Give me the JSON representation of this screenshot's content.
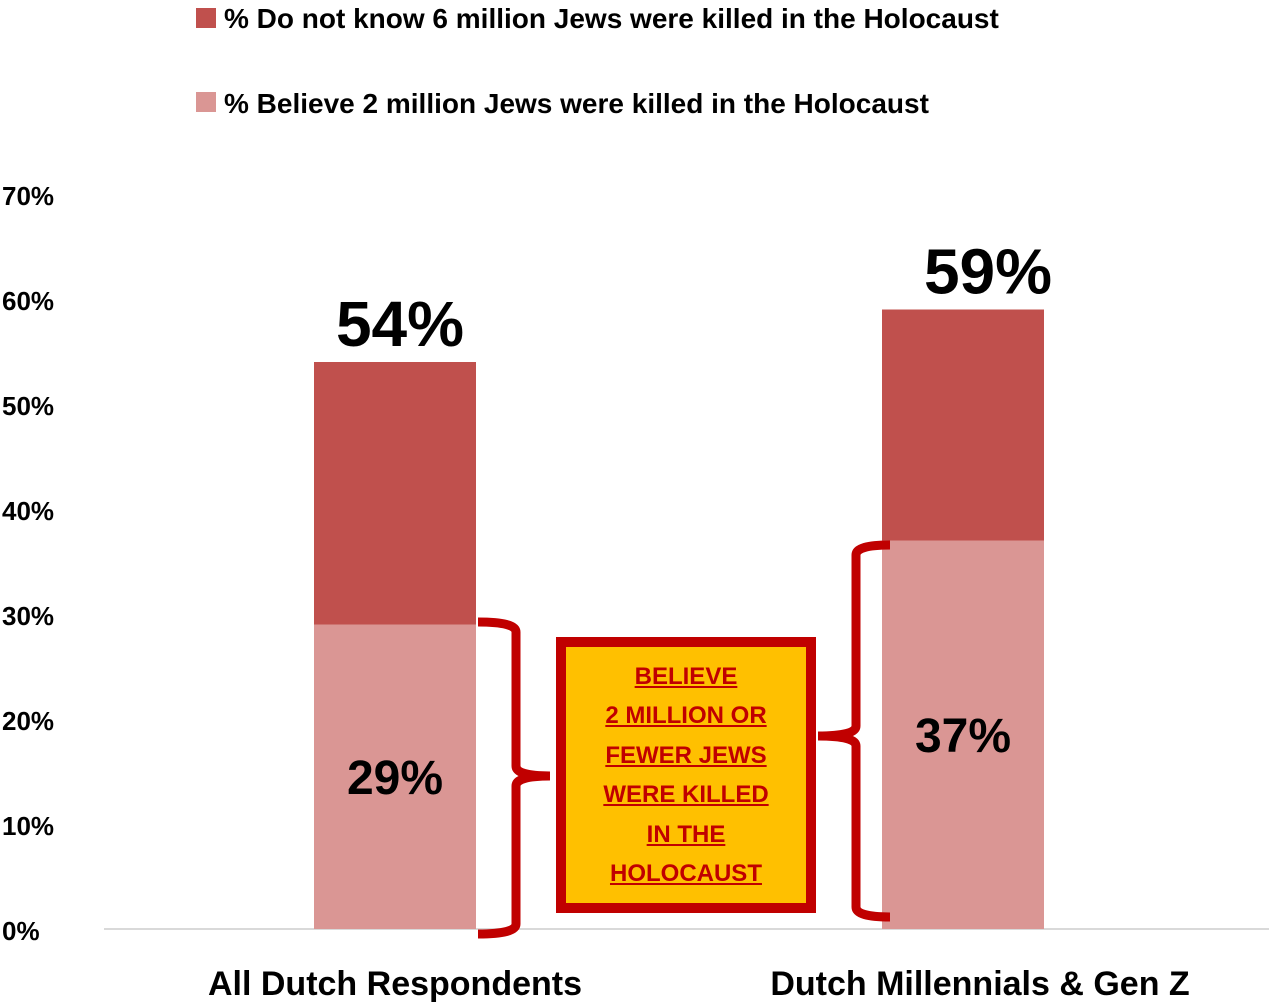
{
  "chart_data": {
    "type": "bar",
    "stacked": true,
    "categories": [
      "All Dutch Respondents",
      "Dutch Millennials & Gen Z"
    ],
    "series": [
      {
        "name": "% Believe 2 million Jews were killed in the Holocaust",
        "values": [
          29,
          37
        ],
        "color": "#da9694"
      },
      {
        "name": "% Do not know 6 million Jews were killed in the Holocaust",
        "values": [
          25,
          22
        ],
        "color": "#c0504d"
      }
    ],
    "totals": [
      54,
      59
    ],
    "total_labels": [
      "54%",
      "59%"
    ],
    "segment_labels": [
      "29%",
      "37%"
    ],
    "ylim": [
      0,
      70
    ],
    "yticks": [
      "0%",
      "10%",
      "20%",
      "30%",
      "40%",
      "50%",
      "60%",
      "70%"
    ],
    "legend_position": "top",
    "grid": false
  },
  "legend": [
    {
      "label": "% Do not know 6 million Jews were killed in the Holocaust",
      "color": "#c0504d"
    },
    {
      "label": "% Believe 2 million Jews were killed in the Holocaust",
      "color": "#da9694"
    }
  ],
  "callout": {
    "text": "BELIEVE\n2 MILLION OR\nFEWER JEWS\nWERE KILLED\nIN THE\nHOLOCAUST",
    "background": "#ffc000",
    "border_color": "#c00000"
  },
  "bracket_color": "#c00000"
}
